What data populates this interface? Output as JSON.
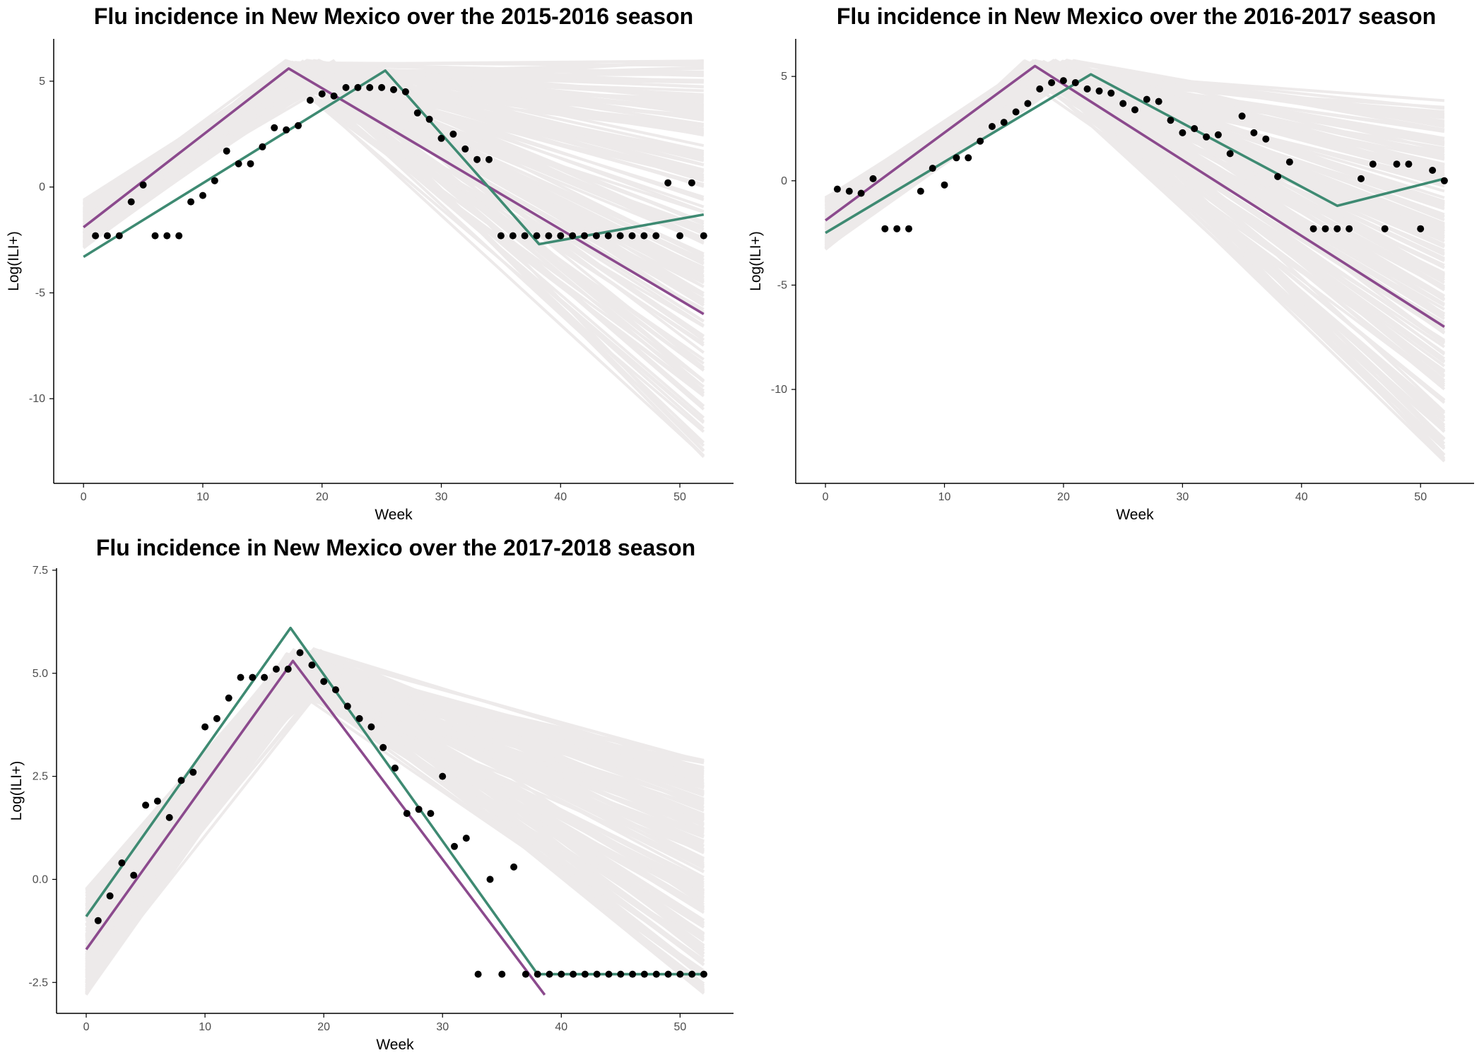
{
  "colors": {
    "observed": "#000000",
    "purple_fit": "#8b4a8d",
    "green_fit": "#3e8a72",
    "ensemble": "#c9bfbf",
    "axis": "#000000",
    "tick_text": "#4d4d4d"
  },
  "chart_data": [
    {
      "type": "line",
      "title": "Flu incidence in New Mexico over the 2015-2016 season",
      "xlabel": "Week",
      "ylabel": "Log(ILI+)",
      "xlim": [
        -2.5,
        54.5
      ],
      "ylim": [
        -14,
        7
      ],
      "x_ticks": [
        0,
        10,
        20,
        30,
        40,
        50
      ],
      "y_ticks": [
        5,
        0,
        -5,
        -10
      ],
      "y_tick_labels": [
        "5",
        "0",
        "-5",
        "-10"
      ],
      "grid": false,
      "legend": "none",
      "ensemble": {
        "peak_week_range": [
          16.5,
          21
        ],
        "peak_value_range": [
          4.9,
          6.0
        ],
        "start_value_range": [
          -2.9,
          -0.6
        ],
        "end_value_range": [
          -13.0,
          6.0
        ]
      },
      "series": [
        {
          "style": "points",
          "x": [
            1,
            2,
            3,
            4,
            5,
            6,
            7,
            8,
            9,
            10,
            11,
            12,
            13,
            14,
            15,
            16,
            17,
            18,
            19,
            20,
            21,
            22,
            23,
            24,
            25,
            26,
            27,
            28,
            29,
            30,
            31,
            32,
            33,
            34,
            35,
            36,
            37,
            38,
            39,
            40,
            41,
            42,
            43,
            44,
            45,
            46,
            47,
            48,
            49,
            50,
            51,
            52
          ],
          "y": [
            -2.3,
            -2.3,
            -2.3,
            -0.7,
            0.1,
            -2.3,
            -2.3,
            -2.3,
            -0.7,
            -0.4,
            0.3,
            1.7,
            1.1,
            1.1,
            1.9,
            2.8,
            2.7,
            2.9,
            4.1,
            4.4,
            4.3,
            4.7,
            4.7,
            4.7,
            4.7,
            4.6,
            4.5,
            3.5,
            3.2,
            2.3,
            2.5,
            1.8,
            1.3,
            1.3,
            -2.3,
            -2.3,
            -2.3,
            -2.3,
            -2.3,
            -2.3,
            -2.3,
            -2.3,
            -2.3,
            -2.3,
            -2.3,
            -2.3,
            -2.3,
            -2.3,
            0.2,
            -2.3,
            0.2,
            -2.3
          ]
        },
        {
          "style": "purple_fit",
          "x": [
            0,
            17.2,
            52
          ],
          "y": [
            -1.9,
            5.6,
            -6.0
          ]
        },
        {
          "style": "green_fit",
          "x": [
            0,
            25.3,
            38.2,
            52
          ],
          "y": [
            -3.3,
            5.5,
            -2.7,
            -1.3
          ]
        }
      ]
    },
    {
      "type": "line",
      "title": "Flu incidence in New Mexico over the 2016-2017 season",
      "xlabel": "Week",
      "ylabel": "Log(ILI+)",
      "xlim": [
        -2.5,
        54.5
      ],
      "ylim": [
        -14.5,
        6.8
      ],
      "x_ticks": [
        0,
        10,
        20,
        30,
        40,
        50
      ],
      "y_ticks": [
        5,
        0,
        -5,
        -10
      ],
      "y_tick_labels": [
        "5",
        "0",
        "-5",
        "-10"
      ],
      "grid": false,
      "legend": "none",
      "ensemble": {
        "peak_week_range": [
          16.5,
          21
        ],
        "peak_value_range": [
          4.8,
          5.8
        ],
        "start_value_range": [
          -3.3,
          -0.8
        ],
        "end_value_range": [
          -13.5,
          3.9
        ]
      },
      "series": [
        {
          "style": "points",
          "x": [
            1,
            2,
            3,
            4,
            5,
            6,
            7,
            8,
            9,
            10,
            11,
            12,
            13,
            14,
            15,
            16,
            17,
            18,
            19,
            20,
            21,
            22,
            23,
            24,
            25,
            26,
            27,
            28,
            29,
            30,
            31,
            32,
            33,
            34,
            35,
            36,
            37,
            38,
            39,
            41,
            42,
            43,
            44,
            45,
            46,
            47,
            48,
            49,
            50,
            51,
            52
          ],
          "y": [
            -0.4,
            -0.5,
            -0.6,
            0.1,
            -2.3,
            -2.3,
            -2.3,
            -0.5,
            0.6,
            -0.2,
            1.1,
            1.1,
            1.9,
            2.6,
            2.8,
            3.3,
            3.7,
            4.4,
            4.7,
            4.8,
            4.7,
            4.4,
            4.3,
            4.2,
            3.7,
            3.4,
            3.9,
            3.8,
            2.9,
            2.3,
            2.5,
            2.1,
            2.2,
            1.3,
            3.1,
            2.3,
            2.0,
            0.2,
            0.9,
            -2.3,
            -2.3,
            -2.3,
            -2.3,
            0.1,
            0.8,
            -2.3,
            0.8,
            0.8,
            -2.3,
            0.5,
            0.0
          ]
        },
        {
          "style": "purple_fit",
          "x": [
            0,
            17.6,
            52
          ],
          "y": [
            -1.9,
            5.5,
            -7.0
          ]
        },
        {
          "style": "green_fit",
          "x": [
            0,
            22.3,
            43.0,
            52
          ],
          "y": [
            -2.5,
            5.1,
            -1.2,
            0.1
          ]
        }
      ]
    },
    {
      "type": "line",
      "title": "Flu incidence in New Mexico over the 2017-2018 season",
      "xlabel": "Week",
      "ylabel": "Log(ILI+)",
      "xlim": [
        -2.5,
        54.5
      ],
      "ylim": [
        -3.25,
        7.55
      ],
      "x_ticks": [
        0,
        10,
        20,
        30,
        40,
        50
      ],
      "y_ticks": [
        7.5,
        5,
        2.5,
        0,
        -2.5
      ],
      "y_tick_labels": [
        "7.5",
        "5.0",
        "2.5",
        "0.0",
        "-2.5"
      ],
      "grid": false,
      "legend": "none",
      "ensemble": {
        "peak_week_range": [
          16.5,
          20
        ],
        "peak_value_range": [
          4.6,
          5.6
        ],
        "start_value_range": [
          -2.8,
          -0.2
        ],
        "end_value_range": [
          -2.8,
          2.9
        ],
        "floor": -2.8
      },
      "series": [
        {
          "style": "points",
          "x": [
            1,
            2,
            3,
            4,
            5,
            6,
            7,
            8,
            9,
            10,
            11,
            12,
            13,
            14,
            15,
            16,
            17,
            18,
            19,
            20,
            21,
            22,
            23,
            24,
            25,
            26,
            27,
            28,
            29,
            30,
            31,
            32,
            33,
            34,
            35,
            36,
            37,
            38,
            39,
            40,
            41,
            42,
            43,
            44,
            45,
            46,
            47,
            48,
            49,
            50,
            51,
            52
          ],
          "y": [
            -1.0,
            -0.4,
            0.4,
            0.1,
            1.8,
            1.9,
            1.5,
            2.4,
            2.6,
            3.7,
            3.9,
            4.4,
            4.9,
            4.9,
            4.9,
            5.1,
            5.1,
            5.5,
            5.2,
            4.8,
            4.6,
            4.2,
            3.9,
            3.7,
            3.2,
            2.7,
            1.6,
            1.7,
            1.6,
            2.5,
            0.8,
            1.0,
            -2.3,
            -0.0,
            -2.3,
            0.3,
            -2.3,
            -2.3,
            -2.3,
            -2.3,
            -2.3,
            -2.3,
            -2.3,
            -2.3,
            -2.3,
            -2.3,
            -2.3,
            -2.3,
            -2.3,
            -2.3,
            -2.3,
            -2.3
          ]
        },
        {
          "style": "purple_fit",
          "x": [
            0,
            17.4,
            38.6
          ],
          "y": [
            -1.7,
            5.3,
            -2.8
          ]
        },
        {
          "style": "green_fit",
          "x": [
            0,
            17.2,
            38.0,
            52
          ],
          "y": [
            -0.9,
            6.1,
            -2.3,
            -2.3
          ]
        }
      ]
    }
  ]
}
